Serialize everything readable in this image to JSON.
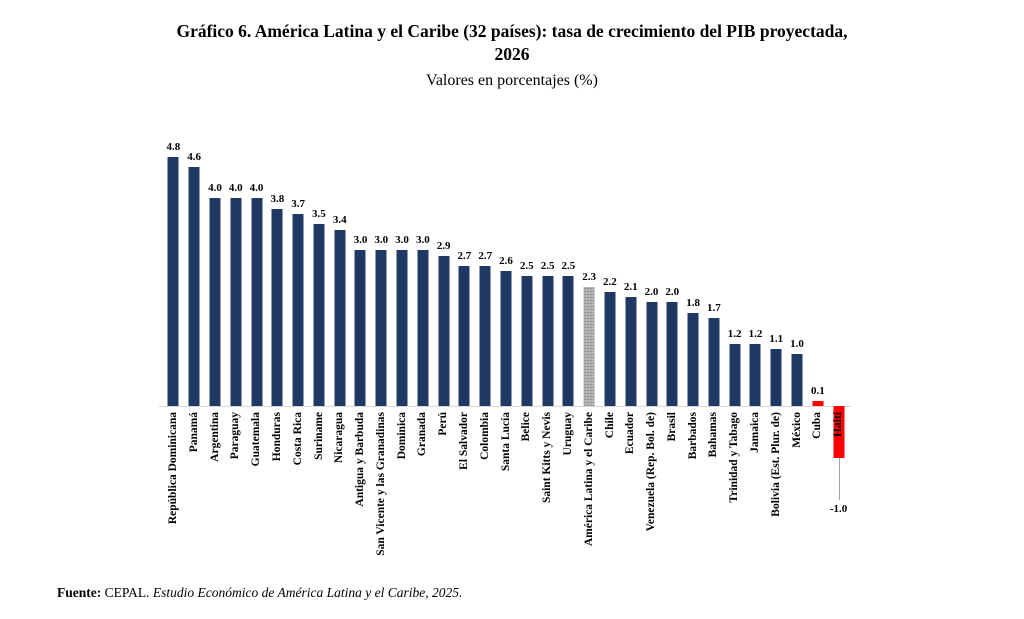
{
  "title": {
    "line1": "Gráfico 6. América Latina y el Caribe (32 países): tasa de crecimiento del PIB proyectada,",
    "line2": "2026"
  },
  "chart_data": {
    "type": "bar",
    "title": "Gráfico 6. América Latina y el Caribe (32 países): tasa de crecimiento del PIB proyectada, 2026",
    "subtitle": "Valores en porcentajes (%)",
    "xlabel": "",
    "ylabel": "",
    "ylim": [
      -1.0,
      5.0
    ],
    "grid": false,
    "legend": false,
    "value_labels_shown": true,
    "colors": {
      "navy": "#1f3864",
      "gray": "#a6a6a6",
      "red": "#ff0000"
    },
    "bars": [
      {
        "label": "República Dominicana",
        "value": 4.8,
        "color": "navy"
      },
      {
        "label": "Panamá",
        "value": 4.6,
        "color": "navy"
      },
      {
        "label": "Argentina",
        "value": 4.0,
        "color": "navy"
      },
      {
        "label": "Paraguay",
        "value": 4.0,
        "color": "navy"
      },
      {
        "label": "Guatemala",
        "value": 4.0,
        "color": "navy"
      },
      {
        "label": "Honduras",
        "value": 3.8,
        "color": "navy"
      },
      {
        "label": "Costa Rica",
        "value": 3.7,
        "color": "navy"
      },
      {
        "label": "Suriname",
        "value": 3.5,
        "color": "navy"
      },
      {
        "label": "Nicaragua",
        "value": 3.4,
        "color": "navy"
      },
      {
        "label": "Antigua y Barbuda",
        "value": 3.0,
        "color": "navy"
      },
      {
        "label": "San Vicente y las Granadinas",
        "value": 3.0,
        "color": "navy"
      },
      {
        "label": "Dominica",
        "value": 3.0,
        "color": "navy"
      },
      {
        "label": "Granada",
        "value": 3.0,
        "color": "navy"
      },
      {
        "label": "Perú",
        "value": 2.9,
        "color": "navy"
      },
      {
        "label": "El Salvador",
        "value": 2.7,
        "color": "navy"
      },
      {
        "label": "Colombia",
        "value": 2.7,
        "color": "navy"
      },
      {
        "label": "Santa Lucía",
        "value": 2.6,
        "color": "navy"
      },
      {
        "label": "Belice",
        "value": 2.5,
        "color": "navy"
      },
      {
        "label": "Saint Kitts y Nevis",
        "value": 2.5,
        "color": "navy"
      },
      {
        "label": "Uruguay",
        "value": 2.5,
        "color": "navy"
      },
      {
        "label": "América Latina y el Caribe",
        "value": 2.3,
        "color": "gray"
      },
      {
        "label": "Chile",
        "value": 2.2,
        "color": "navy"
      },
      {
        "label": "Ecuador",
        "value": 2.1,
        "color": "navy"
      },
      {
        "label": "Venezuela (Rep. Bol. de)",
        "value": 2.0,
        "color": "navy"
      },
      {
        "label": "Brasil",
        "value": 2.0,
        "color": "navy"
      },
      {
        "label": "Barbados",
        "value": 1.8,
        "color": "navy"
      },
      {
        "label": "Bahamas",
        "value": 1.7,
        "color": "navy"
      },
      {
        "label": "Trinidad y Tabago",
        "value": 1.2,
        "color": "navy"
      },
      {
        "label": "Jamaica",
        "value": 1.2,
        "color": "navy"
      },
      {
        "label": "Bolivia (Est. Plur. de)",
        "value": 1.1,
        "color": "navy"
      },
      {
        "label": "México",
        "value": 1.0,
        "color": "navy"
      },
      {
        "label": "Cuba",
        "value": 0.1,
        "color": "red"
      },
      {
        "label": "Haití",
        "value": -1.0,
        "color": "red"
      }
    ]
  },
  "source": {
    "prefix": "Fuente:",
    "normal": " CEPAL. ",
    "italic": "Estudio Económico de América Latina y el Caribe, 2025."
  }
}
